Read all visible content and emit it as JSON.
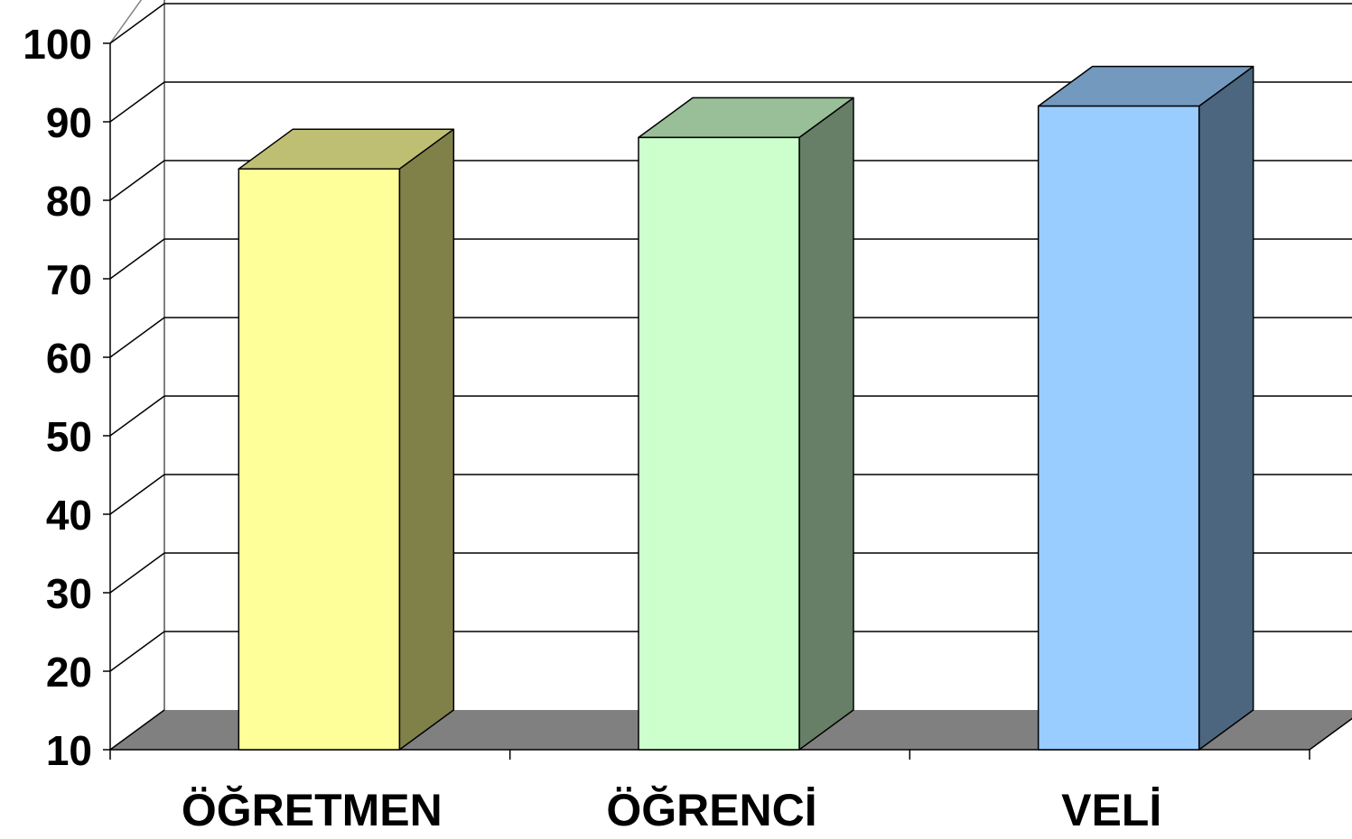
{
  "chart_data": {
    "type": "bar",
    "categories": [
      "ÖĞRETMEN",
      "ÖĞRENCİ",
      "VELİ"
    ],
    "values": [
      84,
      88,
      92
    ],
    "ylim": [
      10,
      100
    ],
    "yticks": [
      10,
      20,
      30,
      40,
      50,
      60,
      70,
      80,
      90,
      100
    ],
    "grid": true,
    "legend": "none",
    "style": "3d-column",
    "colors": {
      "bars": [
        {
          "front": "#FFFF99",
          "top": "#BFBF73",
          "side": "#808049"
        },
        {
          "front": "#CCFFCC",
          "top": "#99BF99",
          "side": "#667F66"
        },
        {
          "front": "#99CCFF",
          "top": "#7399BF",
          "side": "#4D667F"
        }
      ],
      "floor": "#808080",
      "gridline": "#000000",
      "wall_edge": "#808080"
    }
  }
}
